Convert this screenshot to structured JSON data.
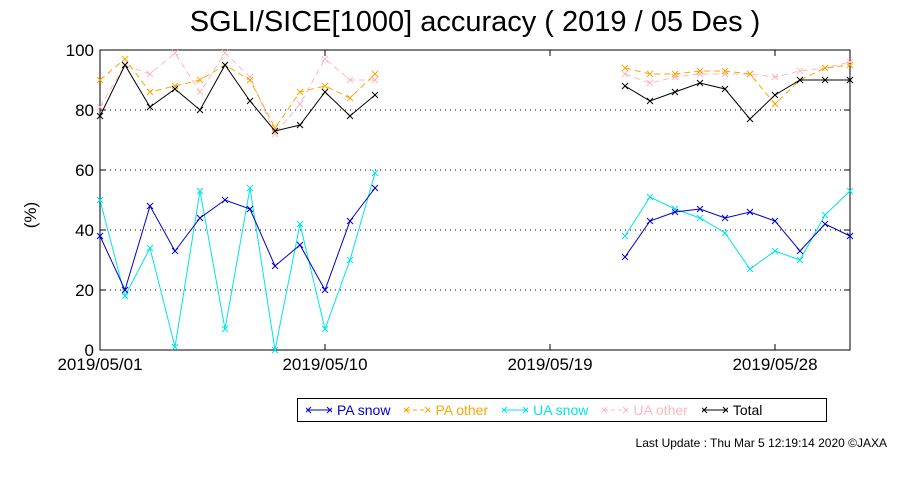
{
  "chart_data": {
    "type": "line",
    "title": "SGLI/SICE[1000] accuracy ( 2019 / 05 Des )",
    "ylabel": "(%)",
    "ylim": [
      0,
      100
    ],
    "yticks": [
      "0",
      "20",
      "40",
      "60",
      "80",
      "100"
    ],
    "xticks": [
      "2019/05/01",
      "2019/05/10",
      "2019/05/19",
      "2019/05/28"
    ],
    "xlim_days": [
      1,
      31
    ],
    "grid": "horizontal dotted at 20, 40, 60, 80",
    "legend_position": "bottom",
    "series": [
      {
        "name": "PA snow",
        "color": "#0000cc",
        "segments": [
          {
            "x": [
              1,
              2,
              3,
              4,
              5,
              6,
              7,
              8,
              9,
              10,
              11,
              12
            ],
            "y": [
              38,
              20,
              48,
              33,
              44,
              50,
              47,
              28,
              35,
              20,
              43,
              54
            ]
          },
          {
            "x": [
              22,
              23,
              24,
              25,
              26,
              27,
              28,
              29,
              30,
              31
            ],
            "y": [
              31,
              43,
              46,
              47,
              44,
              46,
              43,
              33,
              42,
              38
            ]
          }
        ]
      },
      {
        "name": "PA other",
        "color": "#ffa500",
        "segments": [
          {
            "x": [
              1,
              2,
              3,
              4,
              5,
              6,
              7,
              8,
              9,
              10,
              11,
              12
            ],
            "y": [
              90,
              97,
              86,
              88,
              90,
              95,
              90,
              74,
              86,
              88,
              84,
              92
            ]
          },
          {
            "x": [
              22,
              23,
              24,
              25,
              26,
              27,
              28,
              29,
              30,
              31
            ],
            "y": [
              94,
              92,
              92,
              93,
              93,
              92,
              82,
              90,
              94,
              95
            ]
          }
        ]
      },
      {
        "name": "UA snow",
        "color": "#00e5e5",
        "segments": [
          {
            "x": [
              1,
              2,
              3,
              4,
              5,
              6,
              7,
              8,
              9,
              10,
              11,
              12
            ],
            "y": [
              50,
              18,
              34,
              1,
              53,
              7,
              54,
              0,
              42,
              7,
              30,
              59
            ]
          },
          {
            "x": [
              22,
              23,
              24,
              25,
              26,
              27,
              28,
              29,
              30,
              31
            ],
            "y": [
              38,
              51,
              47,
              44,
              39,
              27,
              33,
              30,
              45,
              53
            ]
          }
        ]
      },
      {
        "name": "UA other",
        "color": "#ffb6c1",
        "segments": [
          {
            "x": [
              1,
              2,
              3,
              4,
              5,
              6,
              7,
              8,
              9,
              10,
              11,
              12
            ],
            "y": [
              81,
              95,
              92,
              99,
              86,
              99,
              91,
              72,
              82,
              97,
              90,
              90
            ]
          },
          {
            "x": [
              22,
              23,
              24,
              25,
              26,
              27,
              28,
              29,
              30,
              31
            ],
            "y": [
              92,
              89,
              91,
              92,
              92,
              92,
              91,
              93,
              94,
              96
            ]
          }
        ]
      },
      {
        "name": "Total",
        "color": "#000000",
        "segments": [
          {
            "x": [
              1,
              2,
              3,
              4,
              5,
              6,
              7,
              8,
              9,
              10,
              11,
              12
            ],
            "y": [
              78,
              95,
              81,
              87,
              80,
              95,
              83,
              73,
              75,
              86,
              78,
              85
            ]
          },
          {
            "x": [
              22,
              23,
              24,
              25,
              26,
              27,
              28,
              29,
              30,
              31
            ],
            "y": [
              88,
              83,
              86,
              89,
              87,
              77,
              85,
              90,
              90,
              90
            ]
          }
        ]
      }
    ]
  },
  "footer": "Last Update : Thu Mar  5 12:19:14 2020  ©JAXA"
}
